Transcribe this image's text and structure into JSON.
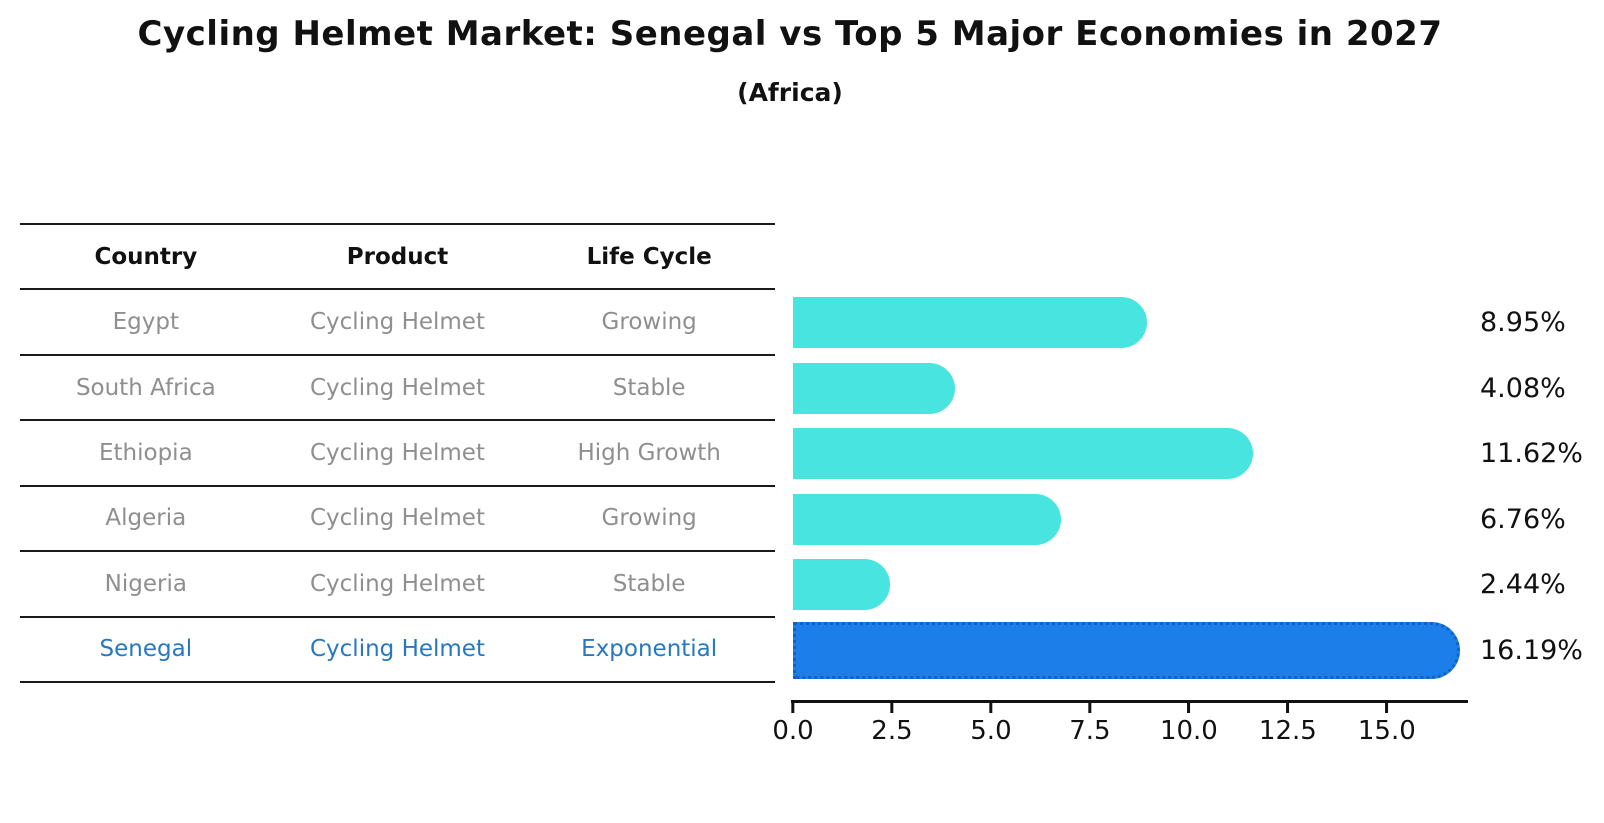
{
  "title": "Cycling Helmet Market: Senegal vs Top 5 Major Economies in 2027",
  "subtitle": "(Africa)",
  "table": {
    "headers": [
      "Country",
      "Product",
      "Life Cycle"
    ],
    "rows": [
      {
        "country": "Egypt",
        "product": "Cycling Helmet",
        "life_cycle": "Growing",
        "highlight": false
      },
      {
        "country": "South Africa",
        "product": "Cycling Helmet",
        "life_cycle": "Stable",
        "highlight": false
      },
      {
        "country": "Ethiopia",
        "product": "Cycling Helmet",
        "life_cycle": "High Growth",
        "highlight": false
      },
      {
        "country": "Algeria",
        "product": "Cycling Helmet",
        "life_cycle": "Growing",
        "highlight": false
      },
      {
        "country": "Nigeria",
        "product": "Cycling Helmet",
        "life_cycle": "Stable",
        "highlight": false
      },
      {
        "country": "Senegal",
        "product": "Cycling Helmet",
        "life_cycle": "Exponential",
        "highlight": true
      }
    ]
  },
  "chart_data": {
    "type": "bar",
    "orientation": "horizontal",
    "title": "Cycling Helmet Market: Senegal vs Top 5 Major Economies in 2027",
    "subtitle": "(Africa)",
    "categories": [
      "Egypt",
      "South Africa",
      "Ethiopia",
      "Algeria",
      "Nigeria",
      "Senegal"
    ],
    "values": [
      8.95,
      4.08,
      11.62,
      6.76,
      2.44,
      16.19
    ],
    "labels": [
      "8.95%",
      "4.08%",
      "11.62%",
      "6.76%",
      "2.44%",
      "16.19%"
    ],
    "unit": "%",
    "xlim": [
      0,
      17.05
    ],
    "x_ticks": [
      {
        "value": 0,
        "label": "0.0"
      },
      {
        "value": 2.5,
        "label": "2.5"
      },
      {
        "value": 5,
        "label": "5.0"
      },
      {
        "value": 7.5,
        "label": "7.5"
      },
      {
        "value": 10,
        "label": "10.0"
      },
      {
        "value": 12.5,
        "label": "12.5"
      },
      {
        "value": 15,
        "label": "15.0"
      }
    ],
    "highlight_index": 5,
    "grid": false,
    "legend": false,
    "colors": {
      "bar": "#48e4e0",
      "highlight_bar": "#1c7ee8",
      "highlight_edge": "#1060cf",
      "highlight_text": "#2878c0",
      "row_text": "#8f8f8f",
      "axis": "#111111"
    }
  }
}
